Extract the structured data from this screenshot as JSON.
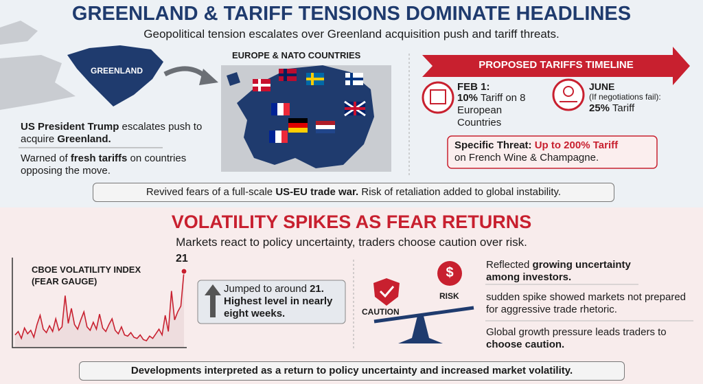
{
  "header": {
    "title": "GREENLAND & TARIFF TENSIONS DOMINATE HEADLINES",
    "subtitle": "Geopolitical tension escalates over Greenland acquisition push and tariff threats."
  },
  "map": {
    "greenland_label": "GREENLAND",
    "europe_label": "EUROPE & NATO COUNTRIES"
  },
  "greenland_notes": [
    [
      "US President Trump",
      " escalates push to acquire ",
      "Greenland."
    ],
    [
      "Warned of ",
      "fresh tariffs",
      " on countries opposing the move."
    ]
  ],
  "timeline": {
    "title": "PROPOSED TARIFFS TIMELINE",
    "events": [
      {
        "date": "FEB 1:",
        "detail": [
          "10%",
          " Tariff on 8 European Countries"
        ]
      },
      {
        "date": "JUNE",
        "condition": "(If negotiations fail):",
        "detail": [
          "25%",
          " Tariff"
        ]
      }
    ]
  },
  "threat": [
    "Specific Threat:",
    " Up to 200% Tariff",
    "on French Wine & Champagne."
  ],
  "trade_war_note": [
    "Revived fears of a full-scale ",
    "US-EU trade war.",
    " Risk of retaliation added to global instability."
  ],
  "section2": {
    "title": "VOLATILITY SPIKES AS FEAR RETURNS",
    "subtitle": "Markets react to policy uncertainty, traders choose caution over risk."
  },
  "vix_chart": {
    "type": "line",
    "title": "CBOE VOLATILITY INDEX (FEAR GAUGE)",
    "color": "#c8202f",
    "values": [
      15.5,
      15.8,
      15.2,
      16.1,
      15.6,
      15.9,
      15.3,
      16.4,
      17.2,
      16.0,
      15.7,
      16.3,
      15.8,
      16.9,
      15.9,
      16.2,
      18.9,
      16.5,
      17.8,
      16.4,
      16.0,
      16.8,
      17.5,
      16.2,
      15.9,
      16.6,
      16.0,
      17.3,
      16.1,
      15.8,
      16.4,
      16.9,
      15.9,
      15.6,
      16.2,
      15.5,
      15.4,
      15.7,
      15.3,
      15.2,
      15.5,
      15.1,
      15.0,
      15.4,
      15.2,
      15.6,
      16.0,
      15.5,
      17.2,
      15.8,
      19.3,
      16.8,
      17.5,
      18.0,
      21
    ]
  },
  "vix_note": [
    "Jumped to around ",
    "21.",
    "Highest level in nearly eight weeks."
  ],
  "balance": {
    "caution": "CAUTION",
    "risk": "RISK",
    "risk_symbol": "$"
  },
  "insights": [
    [
      "Reflected ",
      "growing uncertainty among investors."
    ],
    [
      "sudden spike showed markets not prepared for aggressive trade rhetoric."
    ],
    [
      "Global growth pressure leads traders to ",
      "choose caution."
    ]
  ],
  "footer": "Developments interpreted as a return to policy uncertainty and increased market volatility."
}
